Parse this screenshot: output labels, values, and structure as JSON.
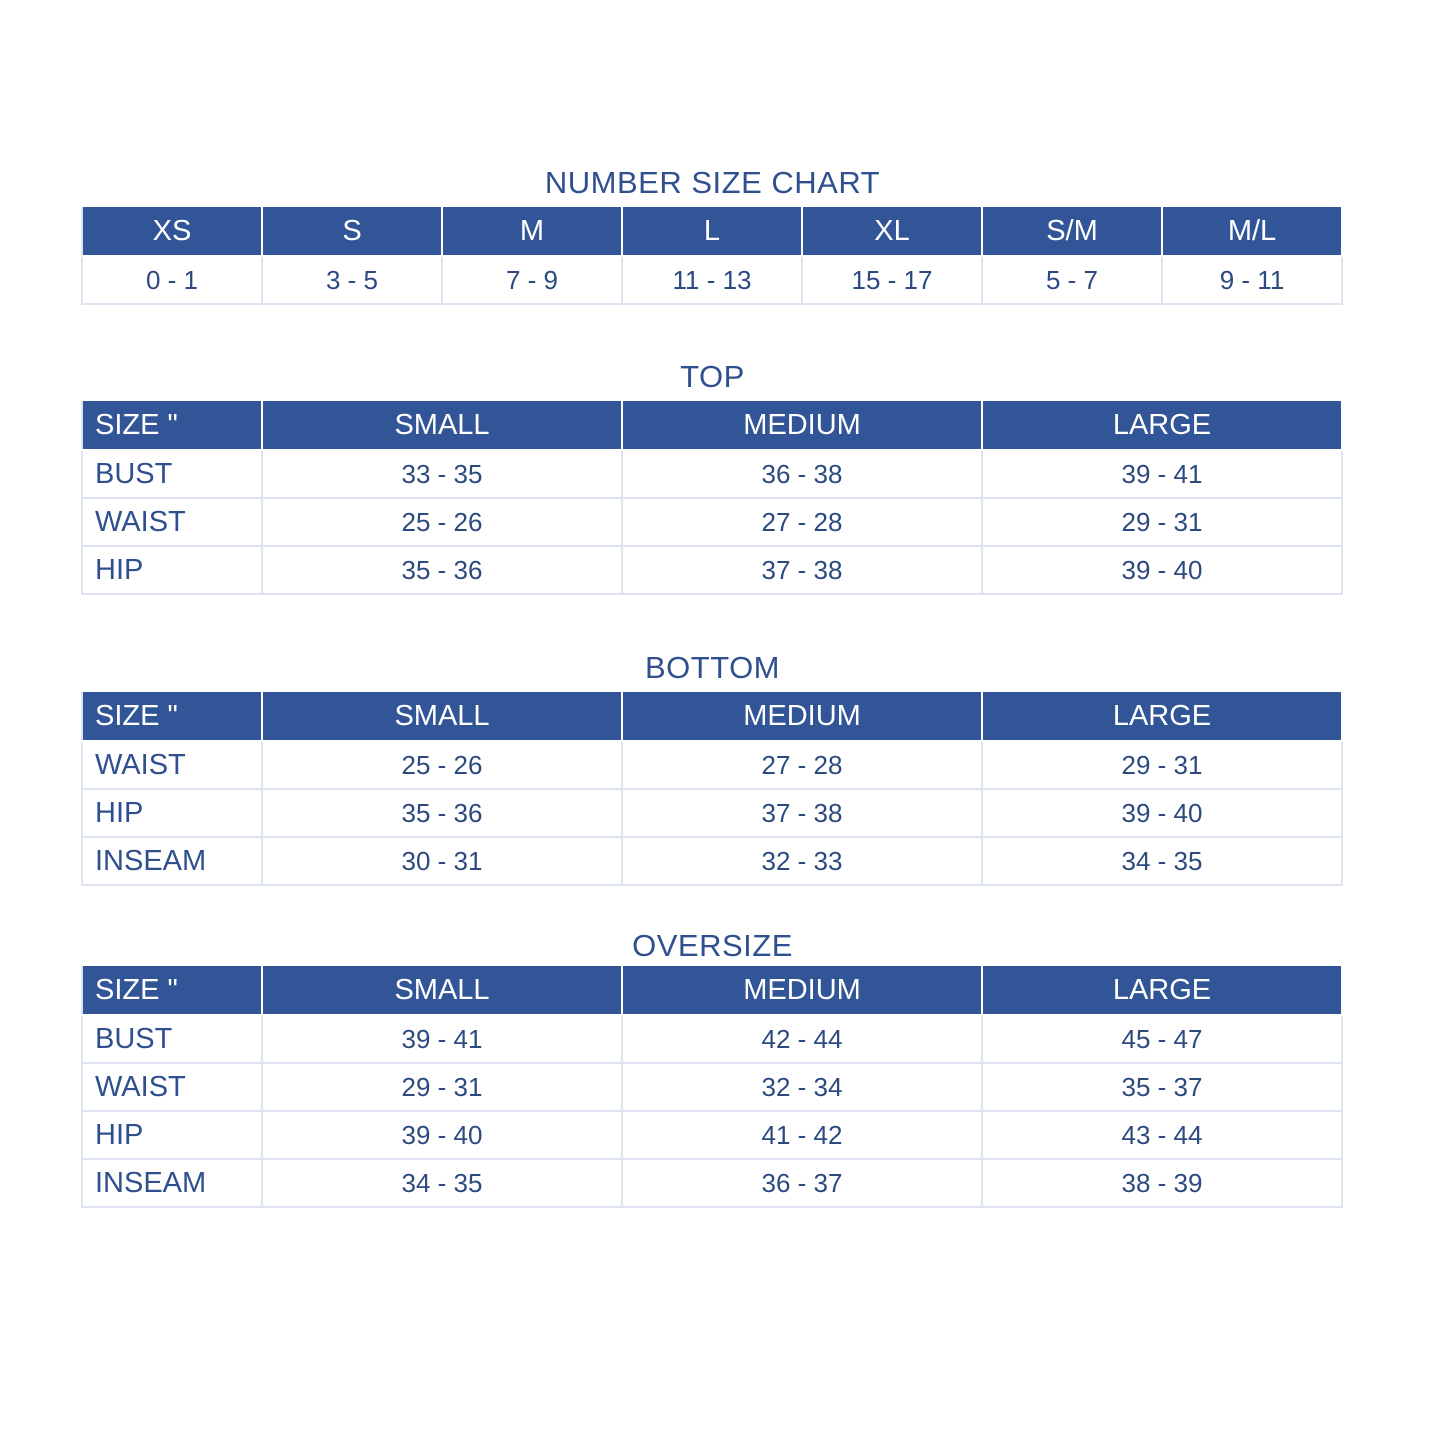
{
  "colors": {
    "header_bg": "#325597",
    "text": "#2d4a80",
    "border": "#dde3f0"
  },
  "number_chart": {
    "title": "NUMBER SIZE CHART",
    "headers": [
      "XS",
      "S",
      "M",
      "L",
      "XL",
      "S/M",
      "M/L"
    ],
    "values": [
      "0 - 1",
      "3 - 5",
      "7 - 9",
      "11 - 13",
      "15 - 17",
      "5 - 7",
      "9 - 11"
    ]
  },
  "tables": [
    {
      "title": "TOP",
      "headers": [
        "SIZE \"",
        "SMALL",
        "MEDIUM",
        "LARGE"
      ],
      "rows": [
        [
          "BUST",
          "33 - 35",
          "36 - 38",
          "39 - 41"
        ],
        [
          "WAIST",
          "25 - 26",
          "27 - 28",
          "29 - 31"
        ],
        [
          "HIP",
          "35 - 36",
          "37 - 38",
          "39 - 40"
        ]
      ]
    },
    {
      "title": "BOTTOM",
      "headers": [
        "SIZE \"",
        "SMALL",
        "MEDIUM",
        "LARGE"
      ],
      "rows": [
        [
          "WAIST",
          "25 - 26",
          "27 - 28",
          "29 - 31"
        ],
        [
          "HIP",
          "35 - 36",
          "37 - 38",
          "39 - 40"
        ],
        [
          "INSEAM",
          "30 - 31",
          "32 - 33",
          "34 - 35"
        ]
      ]
    },
    {
      "title": "OVERSIZE",
      "headers": [
        "SIZE \"",
        "SMALL",
        "MEDIUM",
        "LARGE"
      ],
      "rows": [
        [
          "BUST",
          "39 - 41",
          "42 - 44",
          "45 - 47"
        ],
        [
          "WAIST",
          "29 - 31",
          "32 - 34",
          "35 - 37"
        ],
        [
          "HIP",
          "39 - 40",
          "41 - 42",
          "43 - 44"
        ],
        [
          "INSEAM",
          "34 - 35",
          "36 - 37",
          "38 - 39"
        ]
      ]
    }
  ]
}
